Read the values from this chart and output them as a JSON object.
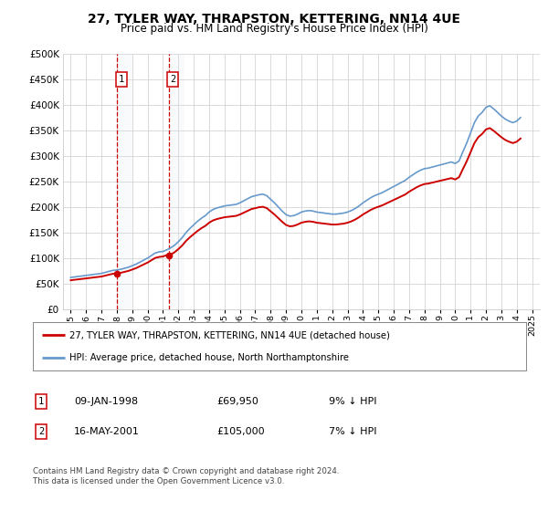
{
  "title": "27, TYLER WAY, THRAPSTON, KETTERING, NN14 4UE",
  "subtitle": "Price paid vs. HM Land Registry's House Price Index (HPI)",
  "legend_line1": "27, TYLER WAY, THRAPSTON, KETTERING, NN14 4UE (detached house)",
  "legend_line2": "HPI: Average price, detached house, North Northamptonshire",
  "footnote": "Contains HM Land Registry data © Crown copyright and database right 2024.\nThis data is licensed under the Open Government Licence v3.0.",
  "sale1_label": "1",
  "sale1_date": "09-JAN-1998",
  "sale1_price": "£69,950",
  "sale1_hpi": "9% ↓ HPI",
  "sale2_label": "2",
  "sale2_date": "16-MAY-2001",
  "sale2_price": "£105,000",
  "sale2_hpi": "7% ↓ HPI",
  "sale1_x": 1998.03,
  "sale1_y": 69950,
  "sale2_x": 2001.37,
  "sale2_y": 105000,
  "ylim": [
    0,
    500000
  ],
  "yticks": [
    0,
    50000,
    100000,
    150000,
    200000,
    250000,
    300000,
    350000,
    400000,
    450000,
    500000
  ],
  "xlim_start": 1994.5,
  "xlim_end": 2025.5,
  "price_line_color": "#cc0000",
  "hpi_line_color": "#6699cc",
  "vline_color": "#cc0000",
  "highlight_color": "#dce6f1",
  "background_color": "#ffffff",
  "grid_color": "#cccccc",
  "hpi_data_x": [
    1995,
    1995.25,
    1995.5,
    1995.75,
    1996,
    1996.25,
    1996.5,
    1996.75,
    1997,
    1997.25,
    1997.5,
    1997.75,
    1998,
    1998.25,
    1998.5,
    1998.75,
    1999,
    1999.25,
    1999.5,
    1999.75,
    2000,
    2000.25,
    2000.5,
    2000.75,
    2001,
    2001.25,
    2001.5,
    2001.75,
    2002,
    2002.25,
    2002.5,
    2002.75,
    2003,
    2003.25,
    2003.5,
    2003.75,
    2004,
    2004.25,
    2004.5,
    2004.75,
    2005,
    2005.25,
    2005.5,
    2005.75,
    2006,
    2006.25,
    2006.5,
    2006.75,
    2007,
    2007.25,
    2007.5,
    2007.75,
    2008,
    2008.25,
    2008.5,
    2008.75,
    2009,
    2009.25,
    2009.5,
    2009.75,
    2010,
    2010.25,
    2010.5,
    2010.75,
    2011,
    2011.25,
    2011.5,
    2011.75,
    2012,
    2012.25,
    2012.5,
    2012.75,
    2013,
    2013.25,
    2013.5,
    2013.75,
    2014,
    2014.25,
    2014.5,
    2014.75,
    2015,
    2015.25,
    2015.5,
    2015.75,
    2016,
    2016.25,
    2016.5,
    2016.75,
    2017,
    2017.25,
    2017.5,
    2017.75,
    2018,
    2018.25,
    2018.5,
    2018.75,
    2019,
    2019.25,
    2019.5,
    2019.75,
    2020,
    2020.25,
    2020.5,
    2020.75,
    2021,
    2021.25,
    2021.5,
    2021.75,
    2022,
    2022.25,
    2022.5,
    2022.75,
    2023,
    2023.25,
    2023.5,
    2023.75,
    2024,
    2024.25
  ],
  "hpi_data_y": [
    62000,
    63000,
    64000,
    65000,
    66000,
    67000,
    68000,
    69000,
    70000,
    72000,
    74000,
    76000,
    76500,
    78000,
    80000,
    82000,
    85000,
    88000,
    92000,
    96000,
    100000,
    105000,
    110000,
    112000,
    113000,
    116000,
    120000,
    125000,
    132000,
    140000,
    150000,
    158000,
    165000,
    172000,
    178000,
    183000,
    190000,
    195000,
    198000,
    200000,
    202000,
    203000,
    204000,
    205000,
    208000,
    212000,
    216000,
    220000,
    222000,
    224000,
    225000,
    222000,
    215000,
    208000,
    200000,
    192000,
    185000,
    182000,
    183000,
    186000,
    190000,
    192000,
    193000,
    192000,
    190000,
    189000,
    188000,
    187000,
    186000,
    186000,
    187000,
    188000,
    190000,
    193000,
    197000,
    202000,
    208000,
    213000,
    218000,
    222000,
    225000,
    228000,
    232000,
    236000,
    240000,
    244000,
    248000,
    252000,
    258000,
    263000,
    268000,
    272000,
    275000,
    276000,
    278000,
    280000,
    282000,
    284000,
    286000,
    288000,
    285000,
    290000,
    308000,
    325000,
    345000,
    365000,
    378000,
    385000,
    395000,
    398000,
    392000,
    385000,
    378000,
    372000,
    368000,
    365000,
    368000,
    375000
  ]
}
